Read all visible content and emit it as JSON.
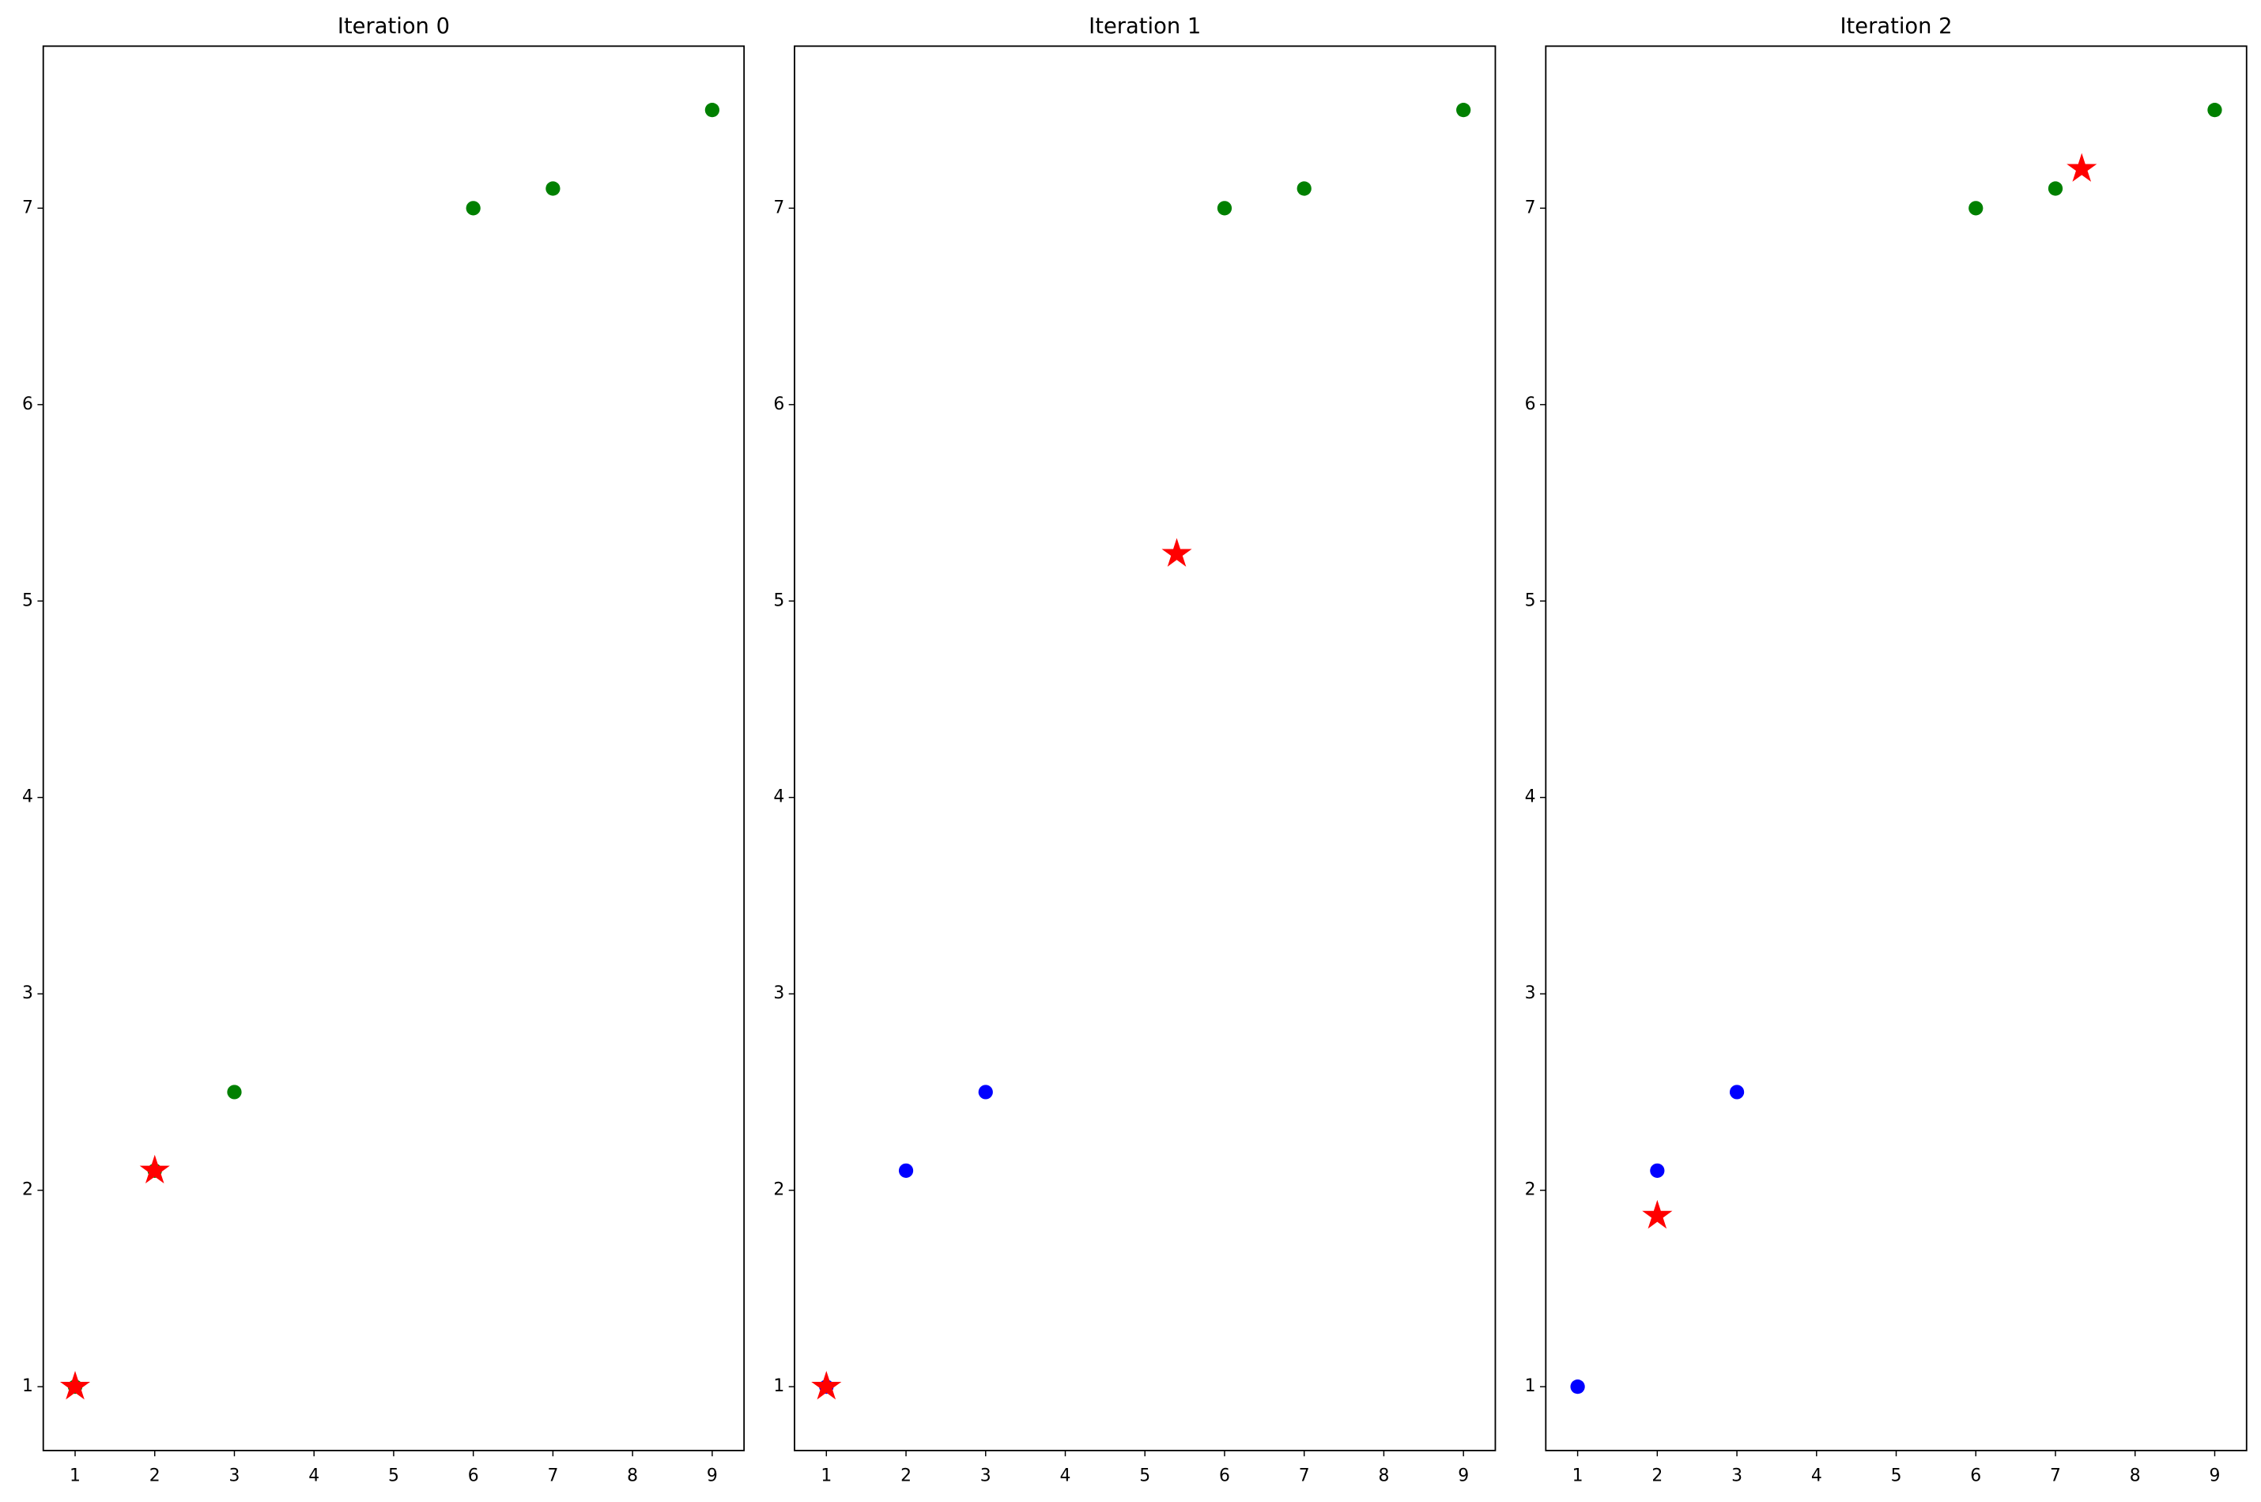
{
  "chart_data": [
    {
      "type": "scatter",
      "title": "Iteration 0",
      "xlim": [
        0.6,
        9.4
      ],
      "ylim": [
        0.675,
        7.825
      ],
      "xticks": [
        1,
        2,
        3,
        4,
        5,
        6,
        7,
        8,
        9
      ],
      "yticks": [
        1,
        2,
        3,
        4,
        5,
        6,
        7
      ],
      "series": [
        {
          "color": "green",
          "marker": "circle",
          "x": [
            1,
            2,
            3,
            6,
            7,
            9
          ],
          "y": [
            1,
            2.1,
            2.5,
            7,
            7.1,
            7.5
          ]
        },
        {
          "color": "red",
          "marker": "star",
          "x": [
            1,
            2
          ],
          "y": [
            1,
            2.1
          ]
        }
      ]
    },
    {
      "type": "scatter",
      "title": "Iteration 1",
      "xlim": [
        0.6,
        9.4
      ],
      "ylim": [
        0.675,
        7.825
      ],
      "xticks": [
        1,
        2,
        3,
        4,
        5,
        6,
        7,
        8,
        9
      ],
      "yticks": [
        1,
        2,
        3,
        4,
        5,
        6,
        7
      ],
      "series": [
        {
          "color": "blue",
          "marker": "circle",
          "x": [
            1,
            2,
            3
          ],
          "y": [
            1,
            2.1,
            2.5
          ]
        },
        {
          "color": "green",
          "marker": "circle",
          "x": [
            6,
            7,
            9
          ],
          "y": [
            7,
            7.1,
            7.5
          ]
        },
        {
          "color": "red",
          "marker": "star",
          "x": [
            1,
            5.4
          ],
          "y": [
            1,
            5.24
          ]
        }
      ]
    },
    {
      "type": "scatter",
      "title": "Iteration 2",
      "xlim": [
        0.6,
        9.4
      ],
      "ylim": [
        0.675,
        7.825
      ],
      "xticks": [
        1,
        2,
        3,
        4,
        5,
        6,
        7,
        8,
        9
      ],
      "yticks": [
        1,
        2,
        3,
        4,
        5,
        6,
        7
      ],
      "series": [
        {
          "color": "blue",
          "marker": "circle",
          "x": [
            1,
            2,
            3
          ],
          "y": [
            1,
            2.1,
            2.5
          ]
        },
        {
          "color": "green",
          "marker": "circle",
          "x": [
            6,
            7,
            9
          ],
          "y": [
            7,
            7.1,
            7.5
          ]
        },
        {
          "color": "red",
          "marker": "star",
          "x": [
            2,
            7.33
          ],
          "y": [
            1.87,
            7.2
          ]
        }
      ]
    }
  ]
}
